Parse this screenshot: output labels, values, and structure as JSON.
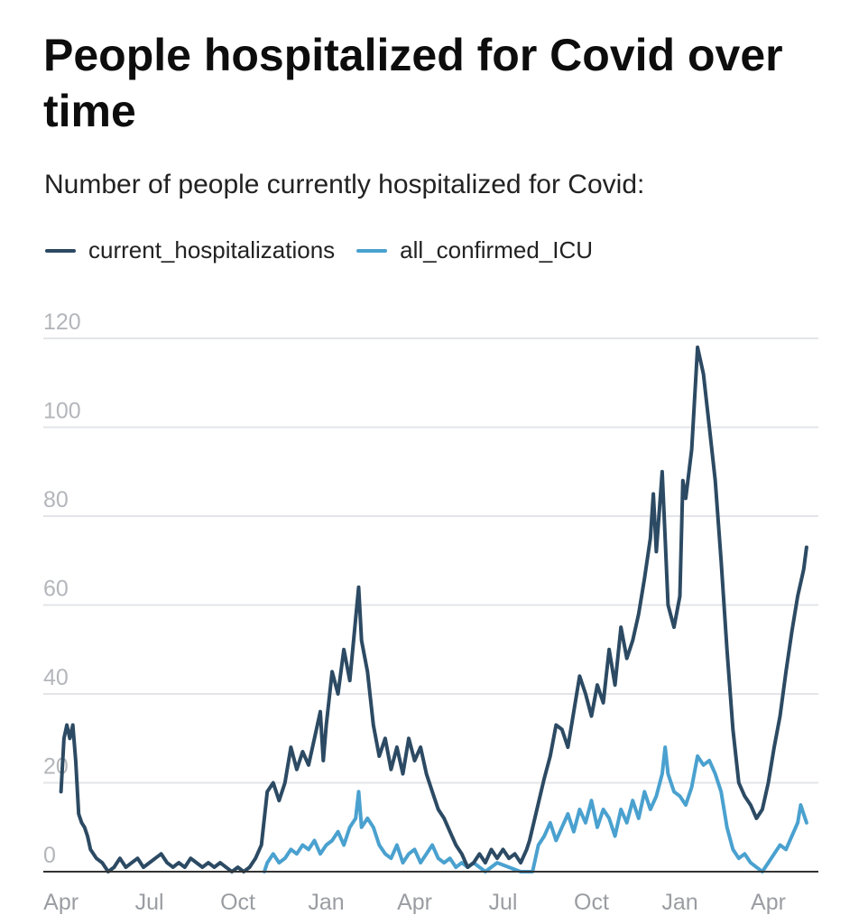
{
  "chart_data": {
    "type": "line",
    "title": "People hospitalized for Covid over time",
    "subtitle": "Number of people currently hospitalized for Covid:",
    "ylim": [
      0,
      120
    ],
    "yticks": [
      "0",
      "20",
      "40",
      "60",
      "80",
      "100",
      "120"
    ],
    "xlim": [
      -0.6,
      25.7
    ],
    "xticks": [
      {
        "label": "Apr",
        "x": 0
      },
      {
        "label": "Jul",
        "x": 3
      },
      {
        "label": "Oct",
        "x": 6
      },
      {
        "label": "Jan",
        "x": 9
      },
      {
        "label": "Apr",
        "x": 12
      },
      {
        "label": "Jul",
        "x": 15
      },
      {
        "label": "Oct",
        "x": 18
      },
      {
        "label": "Jan",
        "x": 21
      },
      {
        "label": "Apr",
        "x": 24
      }
    ],
    "grid": true,
    "legend": "top-left",
    "series": [
      {
        "name": "current_hospitalizations",
        "color": "#2c4a63",
        "points": [
          [
            0.0,
            18
          ],
          [
            0.1,
            30
          ],
          [
            0.2,
            33
          ],
          [
            0.3,
            30
          ],
          [
            0.4,
            33
          ],
          [
            0.5,
            25
          ],
          [
            0.6,
            13
          ],
          [
            0.7,
            11
          ],
          [
            0.8,
            10
          ],
          [
            0.9,
            8
          ],
          [
            1.0,
            5
          ],
          [
            1.2,
            3
          ],
          [
            1.4,
            2
          ],
          [
            1.6,
            0
          ],
          [
            1.8,
            1
          ],
          [
            2.0,
            3
          ],
          [
            2.2,
            1
          ],
          [
            2.4,
            2
          ],
          [
            2.6,
            3
          ],
          [
            2.8,
            1
          ],
          [
            3.0,
            2
          ],
          [
            3.2,
            3
          ],
          [
            3.4,
            4
          ],
          [
            3.6,
            2
          ],
          [
            3.8,
            1
          ],
          [
            4.0,
            2
          ],
          [
            4.2,
            1
          ],
          [
            4.4,
            3
          ],
          [
            4.6,
            2
          ],
          [
            4.8,
            1
          ],
          [
            5.0,
            2
          ],
          [
            5.2,
            1
          ],
          [
            5.4,
            2
          ],
          [
            5.6,
            1
          ],
          [
            5.8,
            0
          ],
          [
            6.0,
            1
          ],
          [
            6.2,
            0
          ],
          [
            6.4,
            1
          ],
          [
            6.6,
            3
          ],
          [
            6.8,
            6
          ],
          [
            7.0,
            18
          ],
          [
            7.2,
            20
          ],
          [
            7.4,
            16
          ],
          [
            7.6,
            20
          ],
          [
            7.8,
            28
          ],
          [
            8.0,
            23
          ],
          [
            8.2,
            27
          ],
          [
            8.4,
            24
          ],
          [
            8.6,
            30
          ],
          [
            8.8,
            36
          ],
          [
            8.9,
            25
          ],
          [
            9.0,
            33
          ],
          [
            9.2,
            45
          ],
          [
            9.4,
            40
          ],
          [
            9.6,
            50
          ],
          [
            9.8,
            43
          ],
          [
            10.0,
            57
          ],
          [
            10.1,
            64
          ],
          [
            10.2,
            52
          ],
          [
            10.4,
            45
          ],
          [
            10.6,
            33
          ],
          [
            10.8,
            26
          ],
          [
            11.0,
            30
          ],
          [
            11.2,
            23
          ],
          [
            11.4,
            28
          ],
          [
            11.6,
            22
          ],
          [
            11.8,
            30
          ],
          [
            12.0,
            25
          ],
          [
            12.2,
            28
          ],
          [
            12.4,
            22
          ],
          [
            12.6,
            18
          ],
          [
            12.8,
            14
          ],
          [
            13.0,
            12
          ],
          [
            13.2,
            9
          ],
          [
            13.4,
            6
          ],
          [
            13.6,
            4
          ],
          [
            13.8,
            1
          ],
          [
            14.0,
            2
          ],
          [
            14.2,
            4
          ],
          [
            14.4,
            2
          ],
          [
            14.6,
            5
          ],
          [
            14.8,
            3
          ],
          [
            15.0,
            5
          ],
          [
            15.2,
            3
          ],
          [
            15.4,
            4
          ],
          [
            15.6,
            2
          ],
          [
            15.8,
            5
          ],
          [
            15.9,
            7
          ],
          [
            16.4,
            21
          ],
          [
            16.6,
            26
          ],
          [
            16.8,
            33
          ],
          [
            17.0,
            32
          ],
          [
            17.2,
            28
          ],
          [
            17.4,
            36
          ],
          [
            17.6,
            44
          ],
          [
            17.8,
            40
          ],
          [
            18.0,
            35
          ],
          [
            18.2,
            42
          ],
          [
            18.4,
            38
          ],
          [
            18.6,
            50
          ],
          [
            18.8,
            42
          ],
          [
            19.0,
            55
          ],
          [
            19.2,
            48
          ],
          [
            19.4,
            52
          ],
          [
            19.6,
            58
          ],
          [
            19.8,
            66
          ],
          [
            20.0,
            75
          ],
          [
            20.1,
            85
          ],
          [
            20.2,
            72
          ],
          [
            20.4,
            90
          ],
          [
            20.5,
            75
          ],
          [
            20.6,
            60
          ],
          [
            20.8,
            55
          ],
          [
            21.0,
            62
          ],
          [
            21.1,
            88
          ],
          [
            21.2,
            84
          ],
          [
            21.4,
            95
          ],
          [
            21.6,
            118
          ],
          [
            21.8,
            112
          ],
          [
            22.0,
            100
          ],
          [
            22.2,
            88
          ],
          [
            22.4,
            70
          ],
          [
            22.6,
            50
          ],
          [
            22.8,
            32
          ],
          [
            23.0,
            20
          ],
          [
            23.2,
            17
          ],
          [
            23.4,
            15
          ],
          [
            23.6,
            12
          ],
          [
            23.8,
            14
          ],
          [
            24.0,
            20
          ],
          [
            24.2,
            28
          ],
          [
            24.4,
            35
          ],
          [
            24.6,
            45
          ],
          [
            24.8,
            54
          ],
          [
            25.0,
            62
          ],
          [
            25.2,
            68
          ],
          [
            25.3,
            73
          ]
        ]
      },
      {
        "name": "all_confirmed_ICU",
        "color": "#4aa1cf",
        "points": [
          [
            6.9,
            0
          ],
          [
            7.0,
            2
          ],
          [
            7.2,
            4
          ],
          [
            7.4,
            2
          ],
          [
            7.6,
            3
          ],
          [
            7.8,
            5
          ],
          [
            8.0,
            4
          ],
          [
            8.2,
            6
          ],
          [
            8.4,
            5
          ],
          [
            8.6,
            7
          ],
          [
            8.8,
            4
          ],
          [
            9.0,
            6
          ],
          [
            9.2,
            7
          ],
          [
            9.4,
            9
          ],
          [
            9.6,
            6
          ],
          [
            9.8,
            10
          ],
          [
            10.0,
            12
          ],
          [
            10.1,
            18
          ],
          [
            10.2,
            10
          ],
          [
            10.4,
            12
          ],
          [
            10.6,
            10
          ],
          [
            10.8,
            6
          ],
          [
            11.0,
            4
          ],
          [
            11.2,
            3
          ],
          [
            11.4,
            6
          ],
          [
            11.6,
            2
          ],
          [
            11.8,
            4
          ],
          [
            12.0,
            5
          ],
          [
            12.2,
            2
          ],
          [
            12.4,
            4
          ],
          [
            12.6,
            6
          ],
          [
            12.8,
            3
          ],
          [
            13.0,
            2
          ],
          [
            13.2,
            3
          ],
          [
            13.4,
            1
          ],
          [
            13.6,
            2
          ],
          [
            13.8,
            1
          ],
          [
            14.0,
            2
          ],
          [
            14.4,
            0
          ],
          [
            14.8,
            2
          ],
          [
            15.2,
            1
          ],
          [
            15.6,
            0
          ],
          [
            16.0,
            0
          ],
          [
            16.2,
            6
          ],
          [
            16.4,
            8
          ],
          [
            16.6,
            11
          ],
          [
            16.8,
            7
          ],
          [
            17.0,
            10
          ],
          [
            17.2,
            13
          ],
          [
            17.4,
            9
          ],
          [
            17.6,
            14
          ],
          [
            17.8,
            11
          ],
          [
            18.0,
            16
          ],
          [
            18.2,
            10
          ],
          [
            18.4,
            14
          ],
          [
            18.6,
            12
          ],
          [
            18.8,
            8
          ],
          [
            19.0,
            14
          ],
          [
            19.2,
            11
          ],
          [
            19.4,
            16
          ],
          [
            19.6,
            12
          ],
          [
            19.8,
            18
          ],
          [
            20.0,
            14
          ],
          [
            20.2,
            17
          ],
          [
            20.4,
            22
          ],
          [
            20.5,
            28
          ],
          [
            20.6,
            22
          ],
          [
            20.8,
            18
          ],
          [
            21.0,
            17
          ],
          [
            21.2,
            15
          ],
          [
            21.4,
            19
          ],
          [
            21.6,
            26
          ],
          [
            21.8,
            24
          ],
          [
            22.0,
            25
          ],
          [
            22.2,
            22
          ],
          [
            22.4,
            18
          ],
          [
            22.6,
            10
          ],
          [
            22.8,
            5
          ],
          [
            23.0,
            3
          ],
          [
            23.2,
            4
          ],
          [
            23.4,
            2
          ],
          [
            23.6,
            1
          ],
          [
            23.8,
            0
          ],
          [
            24.0,
            2
          ],
          [
            24.2,
            4
          ],
          [
            24.4,
            6
          ],
          [
            24.6,
            5
          ],
          [
            24.8,
            8
          ],
          [
            25.0,
            11
          ],
          [
            25.1,
            15
          ],
          [
            25.3,
            11
          ]
        ]
      }
    ]
  }
}
